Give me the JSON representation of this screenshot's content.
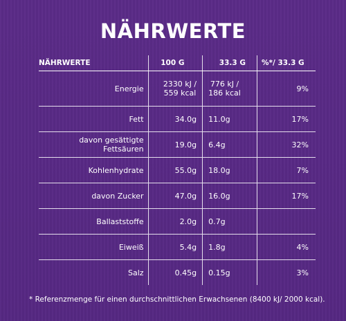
{
  "title": "NÄHRWERTE",
  "table": {
    "headers": [
      "NÄHRWERTE",
      "100 G",
      "33.3 G",
      "%*/ 33.3 G"
    ],
    "rows": [
      {
        "name": "Energie",
        "per100_line1": "2330 kJ /",
        "per100_line2": "559 kcal",
        "portion_line1": "776 kJ /",
        "portion_line2": "186 kcal",
        "ri": "9%"
      },
      {
        "name": "Fett",
        "per100": "34.0g",
        "portion": "11.0g",
        "ri": "17%"
      },
      {
        "name": "davon gesättigte Fettsäuren",
        "per100": "19.0g",
        "portion": "6.4g",
        "ri": "32%"
      },
      {
        "name": "Kohlenhydrate",
        "per100": "55.0g",
        "portion": "18.0g",
        "ri": "7%"
      },
      {
        "name": "davon Zucker",
        "per100": "47.0g",
        "portion": "16.0g",
        "ri": "17%"
      },
      {
        "name": "Ballaststoffe",
        "per100": "2.0g",
        "portion": "0.7g",
        "ri": ""
      },
      {
        "name": "Eiweiß",
        "per100": "5.4g",
        "portion": "1.8g",
        "ri": "4%"
      },
      {
        "name": "Salz",
        "per100": "0.45g",
        "portion": "0.15g",
        "ri": "3%"
      }
    ]
  },
  "footnote": "* Referenzmenge für einen durchschnittlichen Erwachsenen (8400 kJ/ 2000 kcal)."
}
